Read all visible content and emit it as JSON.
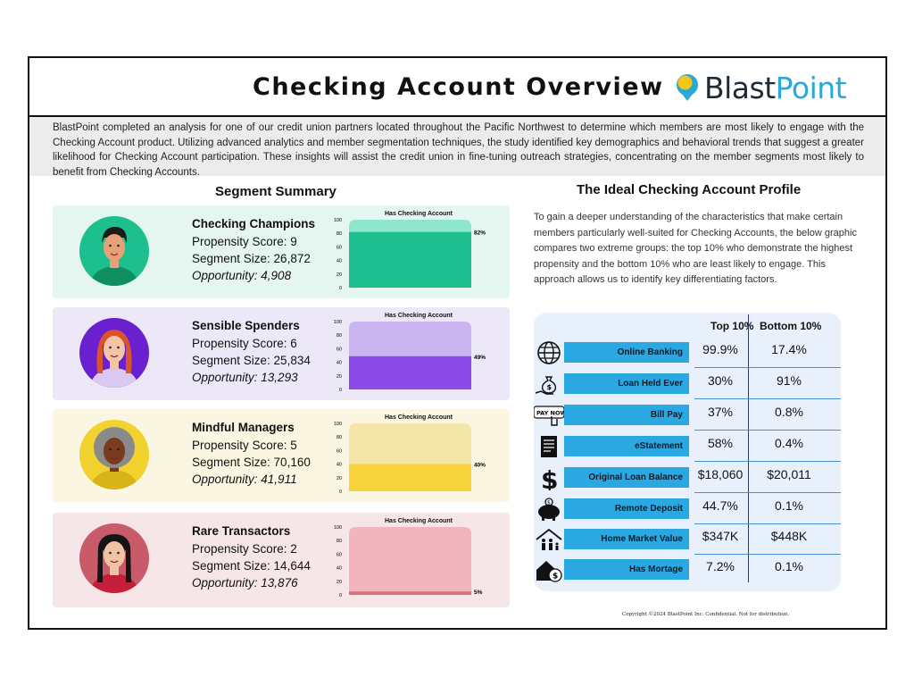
{
  "header": {
    "title": "Checking Account Overview",
    "brand_part1": "Blast",
    "brand_part2": "Point"
  },
  "intro": "BlastPoint completed an analysis for one of our credit union partners located throughout the Pacific Northwest to determine which members are most likely to engage with the Checking Account product. Utilizing advanced analytics and member segmentation techniques, the study identified key demographics and behavioral trends that suggest a greater likelihood for Checking Account participation. These insights will assist the credit union in fine-tuning outreach strategies, concentrating on the member segments most likely to benefit from Checking Accounts.",
  "segment_summary": {
    "heading": "Segment Summary",
    "segments": [
      {
        "name": "Checking Champions",
        "propensity": "Propensity Score: 9",
        "size": "Segment Size: 26,872",
        "opportunity": "Opportunity: 4,908",
        "chart_title": "Has Checking  Account",
        "value_label": "82%",
        "bg": "#e5f5f0",
        "bar": "#1dbf8e",
        "track": "#8ee6cc",
        "avatar_bg": "#1dbf8e",
        "skin": "#e8a077",
        "hair": "#1b1b1b",
        "shirt": "#0f8f5f"
      },
      {
        "name": "Sensible Spenders",
        "propensity": "Propensity Score: 6",
        "size": "Segment Size: 25,834",
        "opportunity": "Opportunity: 13,293",
        "chart_title": "Has Checking Account",
        "value_label": "49%",
        "bg": "#ece8f7",
        "bar": "#8a4ae6",
        "track": "#c9b4f0",
        "avatar_bg": "#6a1fd0",
        "skin": "#f3c4a6",
        "hair": "#d9532b",
        "shirt": "#d9c8f0"
      },
      {
        "name": "Mindful Managers",
        "propensity": "Propensity Score: 5",
        "size": "Segment Size: 70,160",
        "opportunity": "Opportunity: 41,911",
        "chart_title": "Has Checking Account",
        "value_label": "40%",
        "bg": "#fbf6e2",
        "bar": "#f7d33c",
        "track": "#f4e6a8",
        "avatar_bg": "#f2d22e",
        "skin": "#7a3a1e",
        "hair": "#8a8a8a",
        "shirt": "#d8b418"
      },
      {
        "name": "Rare Transactors",
        "propensity": "Propensity Score: 2",
        "size": "Segment Size: 14,644",
        "opportunity": "Opportunity: 13,876",
        "chart_title": "Has Checking Account",
        "value_label": "5%",
        "bg": "#f6e6e8",
        "bar": "#d9707f",
        "track": "#f2b4bd",
        "avatar_bg": "#c85a6a",
        "skin": "#f1c3a6",
        "hair": "#141414",
        "shirt": "#c41e3a"
      }
    ]
  },
  "chart_data": [
    {
      "type": "bar",
      "title": "Has Checking  Account",
      "categories": [
        ""
      ],
      "values": [
        82
      ],
      "data_label": "82%",
      "ylim": [
        0,
        100
      ],
      "yticks": [
        "0",
        "20",
        "40",
        "60",
        "80",
        "100"
      ]
    },
    {
      "type": "bar",
      "title": "Has Checking Account",
      "categories": [
        ""
      ],
      "values": [
        49
      ],
      "data_label": "49%",
      "ylim": [
        0,
        100
      ],
      "yticks": [
        "0",
        "20",
        "40",
        "60",
        "80",
        "100"
      ]
    },
    {
      "type": "bar",
      "title": "Has Checking Account",
      "categories": [
        ""
      ],
      "values": [
        40
      ],
      "data_label": "40%",
      "ylim": [
        0,
        100
      ],
      "yticks": [
        "0",
        "20",
        "40",
        "60",
        "80",
        "100"
      ]
    },
    {
      "type": "bar",
      "title": "Has Checking Account",
      "categories": [
        ""
      ],
      "values": [
        5
      ],
      "data_label": "5%",
      "ylim": [
        0,
        100
      ],
      "yticks": [
        "0",
        "20",
        "40",
        "60",
        "80",
        "100"
      ]
    }
  ],
  "ideal_profile": {
    "heading": "The Ideal Checking Account Profile",
    "description": "To gain a deeper understanding of the characteristics that make certain members particularly well-suited for Checking Accounts, the below graphic compares two extreme groups: the top 10% who demonstrate the highest propensity and the bottom 10% who are least likely to engage. This approach allows us to identify key differentiating factors.",
    "col_top": "Top 10%",
    "col_bottom": "Bottom 10%",
    "pay_now_text": "PAY NOW",
    "rows": [
      {
        "label": "Online Banking",
        "top": "99.9%",
        "bottom": "17.4%",
        "icon": "globe-icon"
      },
      {
        "label": "Loan Held Ever",
        "top": "30%",
        "bottom": "91%",
        "icon": "money-bag-hand-icon"
      },
      {
        "label": "Bill Pay",
        "top": "37%",
        "bottom": "0.8%",
        "icon": "pay-now-icon"
      },
      {
        "label": "eStatement",
        "top": "58%",
        "bottom": "0.4%",
        "icon": "statement-icon"
      },
      {
        "label": "Original Loan Balance",
        "top": "$18,060",
        "bottom": "$20,011",
        "icon": "dollar-sign-icon"
      },
      {
        "label": "Remote Deposit",
        "top": "44.7%",
        "bottom": "0.1%",
        "icon": "piggy-bank-icon"
      },
      {
        "label": "Home Market Value",
        "top": "$347K",
        "bottom": "$448K",
        "icon": "home-family-icon"
      },
      {
        "label": "Has Mortage",
        "top": "7.2%",
        "bottom": "0.1%",
        "icon": "house-dollar-icon"
      }
    ]
  },
  "copyright": "Copyright ©2024 BlastPoint Inc.  Confidential.  Not for distribution."
}
